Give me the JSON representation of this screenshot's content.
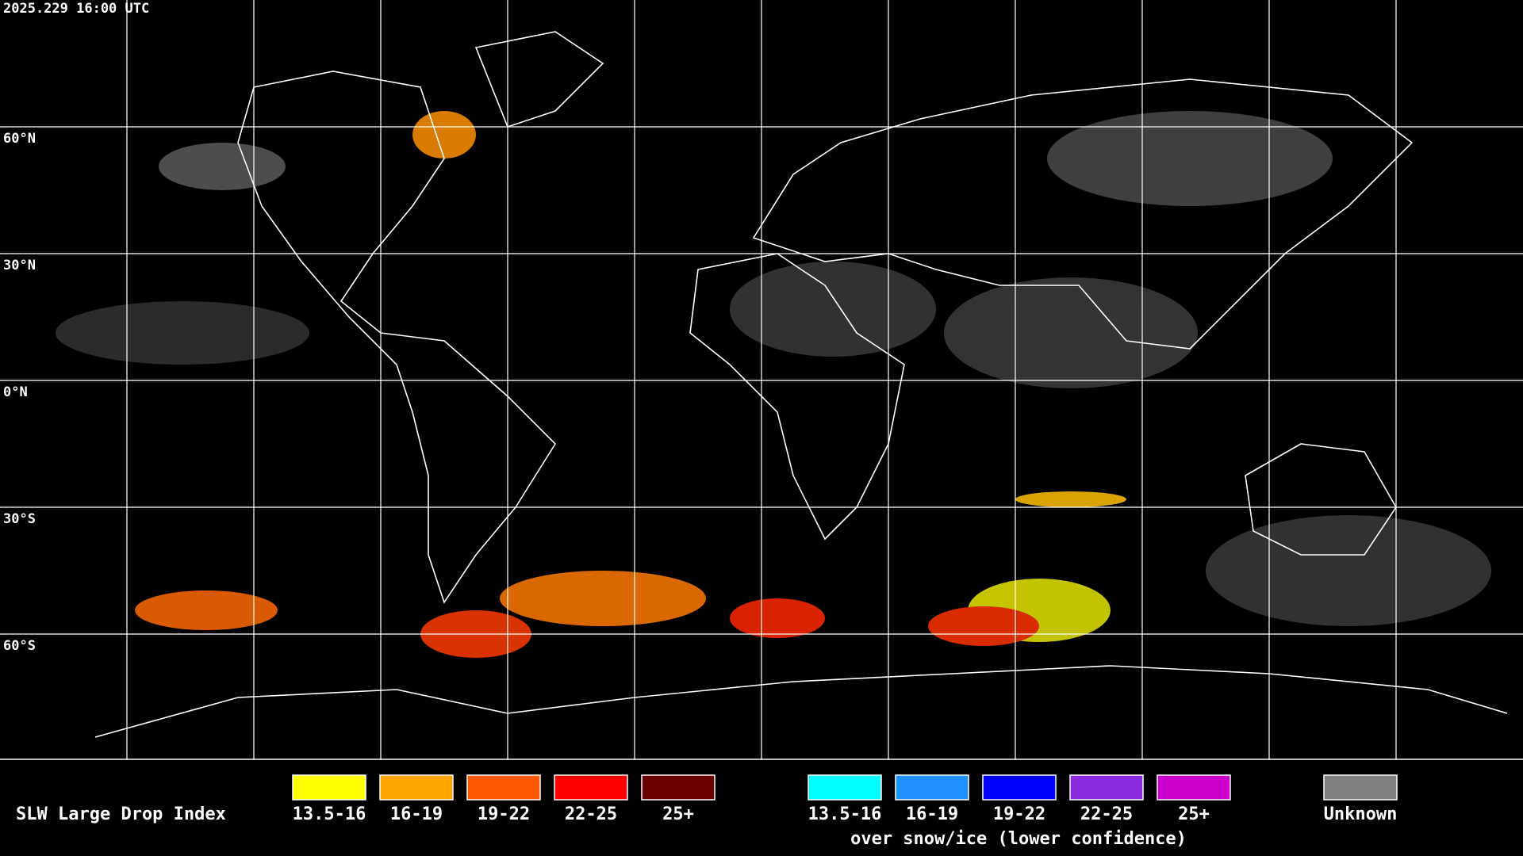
{
  "header": {
    "timestamp": "2025.229 16:00 UTC"
  },
  "map": {
    "latitude_labels": [
      "60°N",
      "30°N",
      "0°N",
      "30°S",
      "60°S"
    ]
  },
  "legend": {
    "title": "SLW Large Drop Index",
    "liquid": [
      {
        "label": "13.5-16",
        "color": "#ffff00"
      },
      {
        "label": "16-19",
        "color": "#ffa500"
      },
      {
        "label": "19-22",
        "color": "#ff5a00"
      },
      {
        "label": "22-25",
        "color": "#ff0000"
      },
      {
        "label": "25+",
        "color": "#6b0000"
      }
    ],
    "snow_ice": [
      {
        "label": "13.5-16",
        "color": "#00ffff"
      },
      {
        "label": "16-19",
        "color": "#1e90ff"
      },
      {
        "label": "19-22",
        "color": "#0000ff"
      },
      {
        "label": "22-25",
        "color": "#8a2be2"
      },
      {
        "label": "25+",
        "color": "#cc00cc"
      }
    ],
    "snow_ice_note": "over snow/ice (lower confidence)",
    "unknown": {
      "label": "Unknown",
      "color": "#808080"
    }
  }
}
